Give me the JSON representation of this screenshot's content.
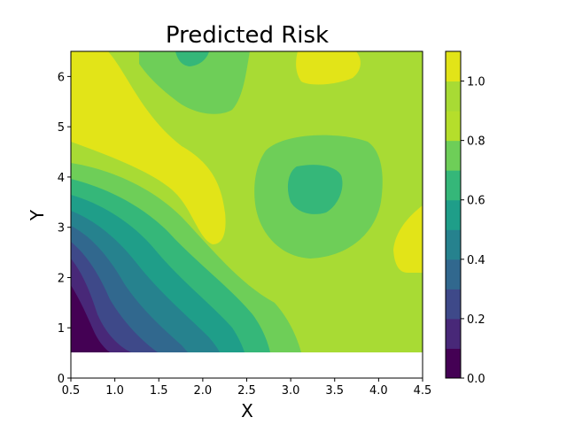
{
  "chart_data": {
    "type": "heatmap",
    "subtype": "filled-contour",
    "title": "Predicted Risk",
    "xlabel": "X",
    "ylabel": "Y",
    "xlim": [
      0.5,
      4.5
    ],
    "ylim": [
      0,
      6.5
    ],
    "data_extent": {
      "x": [
        0.5,
        4.5
      ],
      "y": [
        0.5,
        6.5
      ]
    },
    "x_ticks": [
      "0.5",
      "1.0",
      "1.5",
      "2.0",
      "2.5",
      "3.0",
      "3.5",
      "4.0",
      "4.5"
    ],
    "y_ticks": [
      "0",
      "1",
      "2",
      "3",
      "4",
      "5",
      "6"
    ],
    "colormap": "viridis",
    "colorbar": {
      "levels": [
        0.0,
        0.1,
        0.2,
        0.3,
        0.4,
        0.5,
        0.6,
        0.7,
        0.8,
        0.9,
        1.0,
        1.1
      ],
      "ticks": [
        "0.0",
        "0.2",
        "0.4",
        "0.6",
        "0.8",
        "1.0"
      ],
      "colors": [
        "#440154",
        "#482878",
        "#3e4989",
        "#31688e",
        "#26828e",
        "#1f9e89",
        "#35b779",
        "#6ece58",
        "#b5de2b",
        "#a8db34",
        "#e2e418"
      ]
    },
    "grid": false,
    "legend": "colorbar-right"
  }
}
